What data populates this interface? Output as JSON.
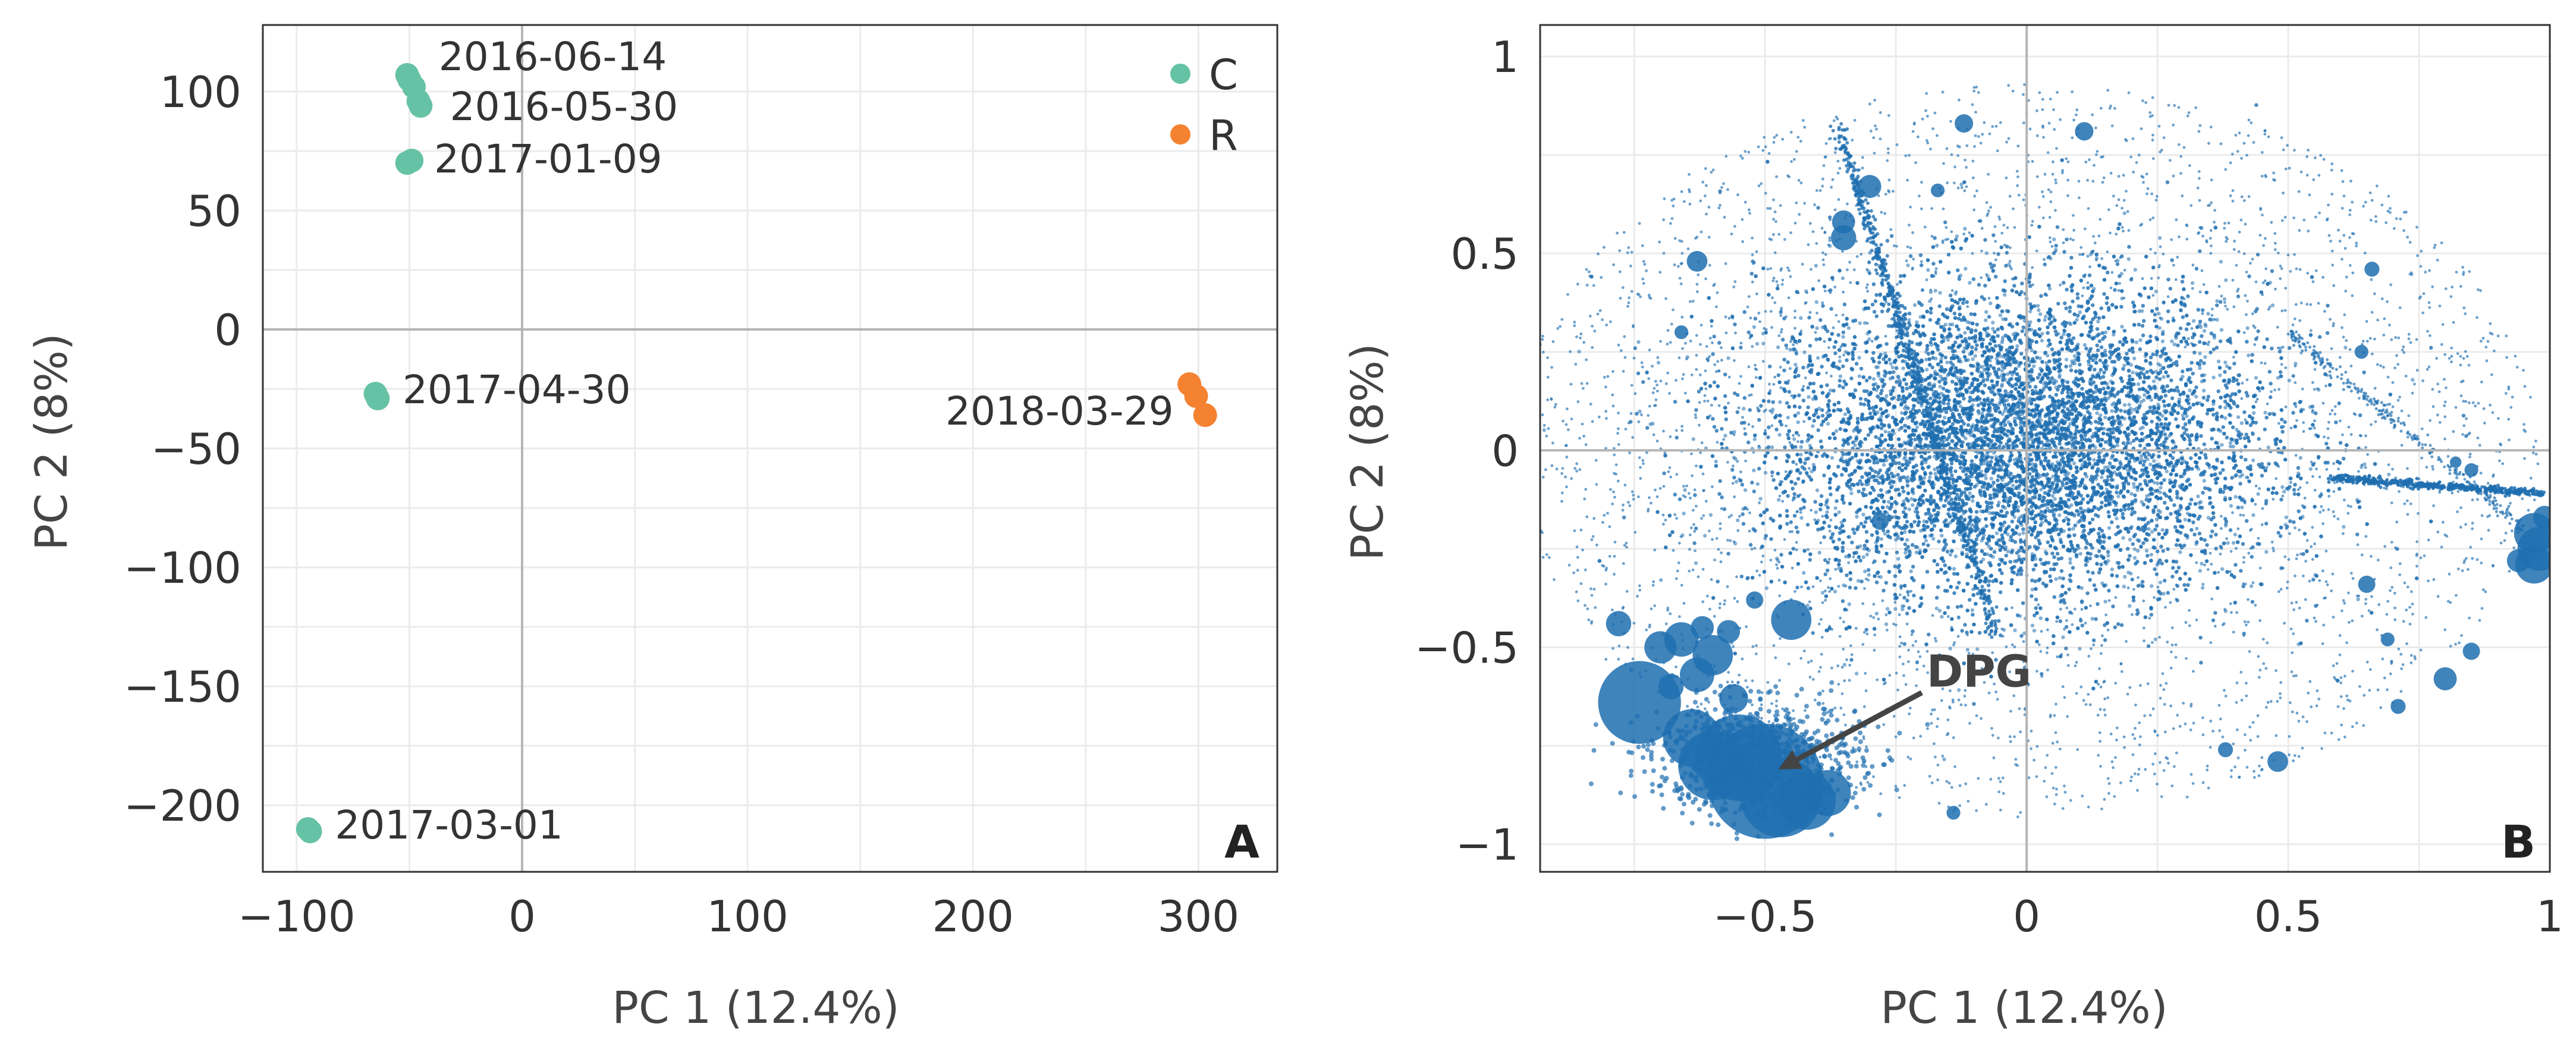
{
  "chart_data": [
    {
      "type": "scatter",
      "panel_label": "A",
      "xlabel": "PC 1 (12.4%)",
      "ylabel": "PC 2 (8%)",
      "xlim": [
        -115,
        335
      ],
      "ylim": [
        -228,
        128
      ],
      "xticks": [
        -100,
        0,
        100,
        200,
        300
      ],
      "xtick_labels": [
        "−100",
        "0",
        "100",
        "200",
        "300"
      ],
      "yticks": [
        100,
        50,
        0,
        -50,
        -100,
        -150,
        -200
      ],
      "ytick_labels": [
        "100",
        "50",
        "0",
        "−50",
        "−100",
        "−150",
        "−200"
      ],
      "grid": true,
      "legend_position": "top-right",
      "series": [
        {
          "name": "C",
          "color": "#66c2a5",
          "points": [
            {
              "x": -51,
              "y": 107
            },
            {
              "x": -50,
              "y": 105
            },
            {
              "x": -48,
              "y": 102
            },
            {
              "x": -46,
              "y": 96
            },
            {
              "x": -45,
              "y": 94
            },
            {
              "x": -51,
              "y": 70
            },
            {
              "x": -49,
              "y": 71
            },
            {
              "x": -65,
              "y": -27
            },
            {
              "x": -64,
              "y": -29
            },
            {
              "x": -95,
              "y": -210
            },
            {
              "x": -94,
              "y": -211
            }
          ]
        },
        {
          "name": "R",
          "color": "#f58231",
          "points": [
            {
              "x": 296,
              "y": -23
            },
            {
              "x": 299,
              "y": -28
            },
            {
              "x": 303,
              "y": -36
            }
          ]
        }
      ],
      "annotations": [
        {
          "text": "2016-06-14",
          "x": -37,
          "y": 109,
          "anchor": "start"
        },
        {
          "text": "2016-05-30",
          "x": -32,
          "y": 88,
          "anchor": "start"
        },
        {
          "text": "2017-01-09",
          "x": -39,
          "y": 66,
          "anchor": "start"
        },
        {
          "text": "2017-04-30",
          "x": -53,
          "y": -31,
          "anchor": "start"
        },
        {
          "text": "2018-03-29",
          "x": 289,
          "y": -40,
          "anchor": "end"
        },
        {
          "text": "2017-03-01",
          "x": -83,
          "y": -214,
          "anchor": "start"
        }
      ]
    },
    {
      "type": "scatter",
      "panel_label": "B",
      "xlabel": "PC 1 (12.4%)",
      "ylabel": "PC 2 (8%)",
      "xlim": [
        -0.93,
        1.0
      ],
      "ylim": [
        -1.07,
        1.08
      ],
      "xticks": [
        -0.5,
        0,
        0.5,
        1
      ],
      "xtick_labels": [
        "−0.5",
        "0",
        "0.5",
        "1"
      ],
      "yticks": [
        1,
        0.5,
        0,
        -0.5,
        -1
      ],
      "ytick_labels": [
        "1",
        "0.5",
        "0",
        "−0.5",
        "−1"
      ],
      "grid": true,
      "series_color": "#1f6fb0",
      "arrow_annotation": {
        "text": "DPG",
        "text_x": -0.18,
        "text_y": -0.6,
        "tip_x": -0.49,
        "tip_y": -0.82
      },
      "large_points": [
        {
          "x": -0.5,
          "y": -0.84,
          "s": 1.0
        },
        {
          "x": -0.55,
          "y": -0.78,
          "s": 0.75
        },
        {
          "x": -0.47,
          "y": -0.88,
          "s": 0.7
        },
        {
          "x": -0.6,
          "y": -0.8,
          "s": 0.6
        },
        {
          "x": -0.74,
          "y": -0.64,
          "s": 0.72
        },
        {
          "x": -0.64,
          "y": -0.73,
          "s": 0.5
        },
        {
          "x": -0.42,
          "y": -0.89,
          "s": 0.5
        },
        {
          "x": -0.38,
          "y": -0.87,
          "s": 0.4
        },
        {
          "x": -0.45,
          "y": -0.43,
          "s": 0.35
        },
        {
          "x": -0.6,
          "y": -0.52,
          "s": 0.35
        },
        {
          "x": -0.66,
          "y": -0.48,
          "s": 0.3
        },
        {
          "x": -0.7,
          "y": -0.5,
          "s": 0.28
        },
        {
          "x": -0.78,
          "y": -0.44,
          "s": 0.22
        },
        {
          "x": -0.57,
          "y": -0.46,
          "s": 0.2
        },
        {
          "x": -0.63,
          "y": -0.57,
          "s": 0.3
        },
        {
          "x": -0.56,
          "y": -0.63,
          "s": 0.25
        },
        {
          "x": -0.35,
          "y": 0.58,
          "s": 0.2
        },
        {
          "x": -0.35,
          "y": 0.54,
          "s": 0.22
        },
        {
          "x": -0.3,
          "y": 0.67,
          "s": 0.2
        },
        {
          "x": -0.63,
          "y": 0.48,
          "s": 0.18
        },
        {
          "x": -0.12,
          "y": 0.83,
          "s": 0.16
        },
        {
          "x": 0.11,
          "y": 0.81,
          "s": 0.16
        },
        {
          "x": -0.17,
          "y": 0.66,
          "s": 0.12
        },
        {
          "x": 0.97,
          "y": -0.21,
          "s": 0.35
        },
        {
          "x": 0.98,
          "y": -0.25,
          "s": 0.38
        },
        {
          "x": 0.97,
          "y": -0.29,
          "s": 0.33
        },
        {
          "x": 0.94,
          "y": -0.28,
          "s": 0.2
        },
        {
          "x": 0.99,
          "y": -0.17,
          "s": 0.2
        },
        {
          "x": 0.8,
          "y": -0.58,
          "s": 0.2
        },
        {
          "x": 0.85,
          "y": -0.51,
          "s": 0.15
        },
        {
          "x": 0.71,
          "y": -0.65,
          "s": 0.13
        },
        {
          "x": 0.65,
          "y": -0.34,
          "s": 0.15
        },
        {
          "x": 0.48,
          "y": -0.79,
          "s": 0.18
        },
        {
          "x": 0.38,
          "y": -0.76,
          "s": 0.13
        },
        {
          "x": -0.14,
          "y": -0.92,
          "s": 0.12
        },
        {
          "x": 0.66,
          "y": 0.46,
          "s": 0.13
        },
        {
          "x": 0.64,
          "y": 0.25,
          "s": 0.12
        },
        {
          "x": 0.85,
          "y": -0.05,
          "s": 0.12
        },
        {
          "x": 0.82,
          "y": -0.03,
          "s": 0.1
        },
        {
          "x": 0.69,
          "y": -0.48,
          "s": 0.12
        },
        {
          "x": -0.28,
          "y": -0.18,
          "s": 0.15
        },
        {
          "x": -0.66,
          "y": 0.3,
          "s": 0.12
        },
        {
          "x": -0.62,
          "y": -0.45,
          "s": 0.2
        },
        {
          "x": -0.52,
          "y": -0.38,
          "s": 0.15
        },
        {
          "x": -0.68,
          "y": -0.6,
          "s": 0.22
        }
      ]
    }
  ]
}
